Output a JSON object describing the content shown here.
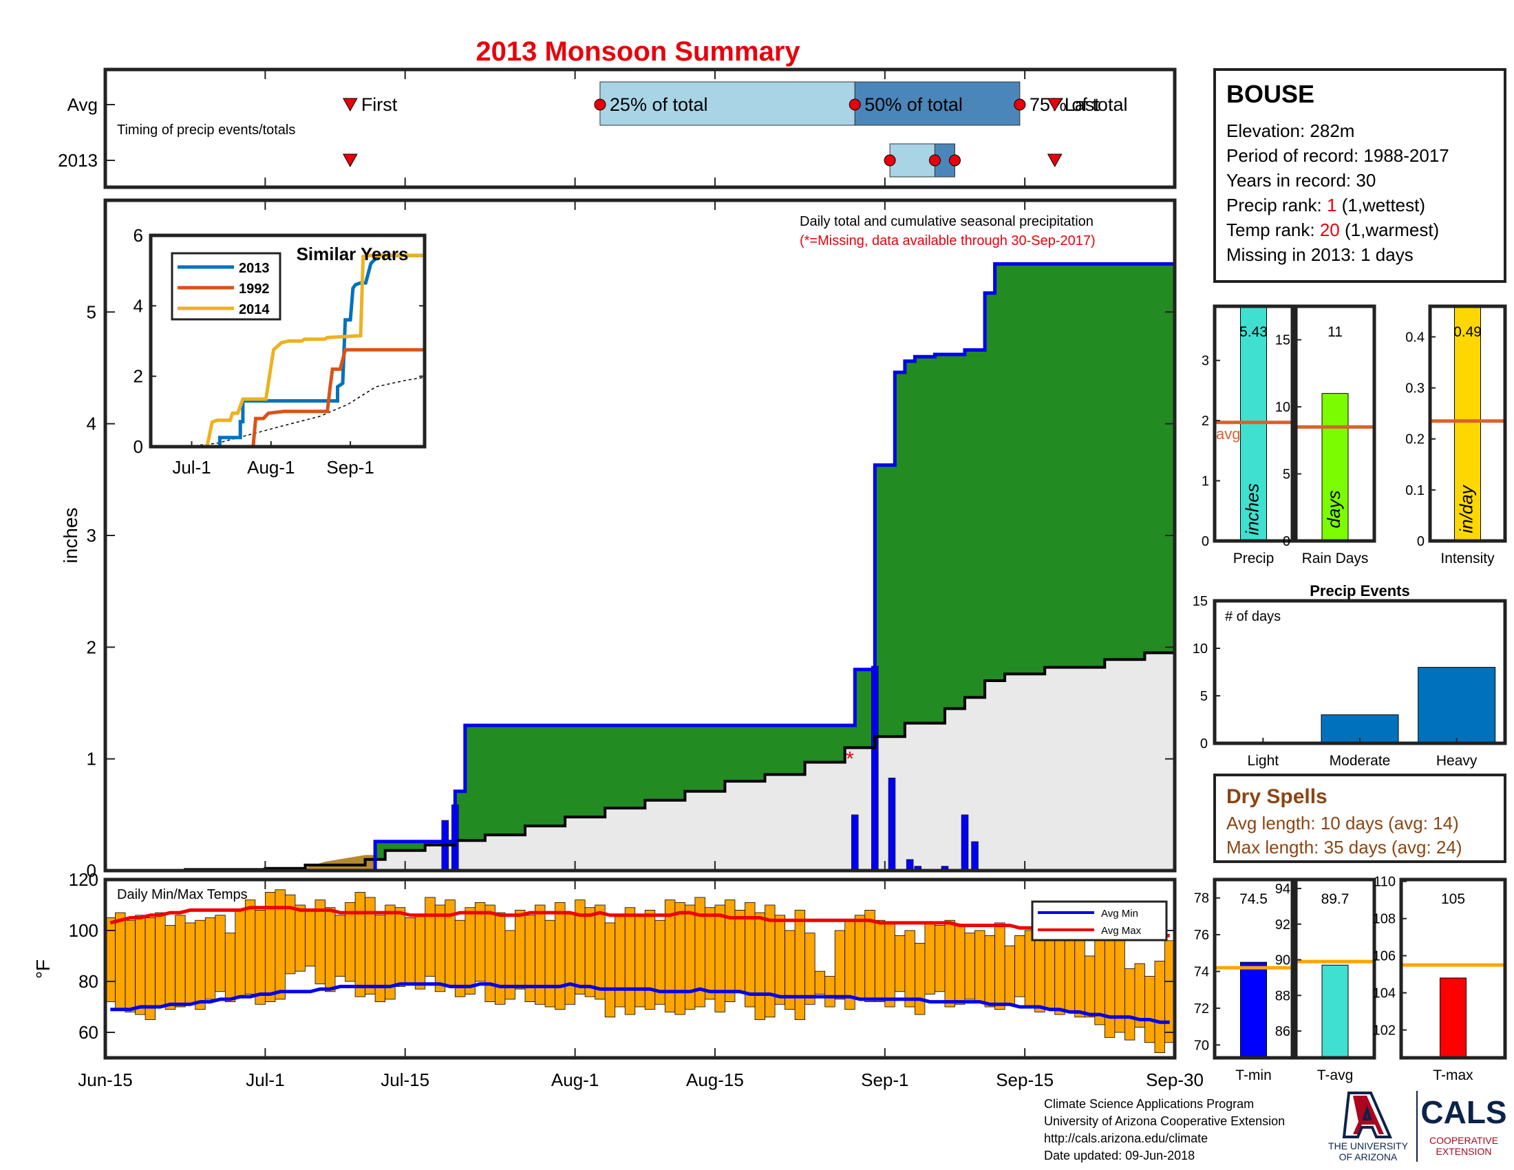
{
  "title": "2013 Monsoon Summary",
  "colors": {
    "title": "#e8000b",
    "red": "#e8000b",
    "green": "#228b22",
    "blue": "#0000ee",
    "cum_avg_fill": "#e9e9e9",
    "light_blue": "#a8d4e6",
    "mid_blue": "#4a86b9",
    "orange_bar": "#ffa500",
    "avg_line_orange": "#d9622b",
    "brown": "#8b4513",
    "series_2013": "#0072bd",
    "series_1992": "#d95319",
    "series_2014": "#edb120",
    "precip_bar": "#40e0d0",
    "raindays_bar": "#7cfc00",
    "intensity_bar": "#ffd700",
    "tmin_bar": "#0000ff",
    "tavg_bar": "#40e0d0",
    "tmax_bar": "#ff0000",
    "temp_avg_line": "#ffa500",
    "events_bar": "#0072bd",
    "dry_spells_text": "#8b4513"
  },
  "timing": {
    "row_labels": [
      "Avg",
      "2013"
    ],
    "note": "Timing of precip events/totals",
    "labels": {
      "first": "First",
      "p25": "25% of total",
      "p50": "50% of total",
      "p75": "75% of total",
      "last": "Last"
    },
    "avg": {
      "first_day": 24.5,
      "p25_day": 49.5,
      "p50_day": 75.0,
      "p75_day": 91.5,
      "last_day": 95.0
    },
    "y2013": {
      "first_day": 24.5,
      "p25_day": 78.5,
      "p50_day": 83.0,
      "p75_day": 85.0,
      "last_day": 95.0
    }
  },
  "main_chart": {
    "ylabel": "inches",
    "note": "Daily total and cumulative seasonal precipitation",
    "missing_note": "(*=Missing, data available through 30-Sep-2017)",
    "ylim": [
      0,
      6
    ],
    "yticks": [
      0,
      1,
      2,
      3,
      4,
      5
    ],
    "xlim": [
      0,
      107
    ],
    "xticks": [
      {
        "day": 0,
        "label": "Jun-15"
      },
      {
        "day": 16,
        "label": "Jul-1"
      },
      {
        "day": 30,
        "label": "Jul-15"
      },
      {
        "day": 47,
        "label": "Aug-1"
      },
      {
        "day": 61,
        "label": "Aug-15"
      },
      {
        "day": 78,
        "label": "Sep-1"
      },
      {
        "day": 92,
        "label": "Sep-15"
      },
      {
        "day": 107,
        "label": "Sep-30"
      }
    ],
    "cumulative_2013": [
      [
        0,
        0
      ],
      [
        27,
        0
      ],
      [
        27,
        0.26
      ],
      [
        35,
        0.26
      ],
      [
        35,
        0.71
      ],
      [
        36,
        0.71
      ],
      [
        36,
        1.3
      ],
      [
        75,
        1.3
      ],
      [
        75,
        1.8
      ],
      [
        77,
        1.8
      ],
      [
        77,
        3.63
      ],
      [
        79,
        3.63
      ],
      [
        79,
        4.46
      ],
      [
        80,
        4.46
      ],
      [
        80,
        4.56
      ],
      [
        81,
        4.56
      ],
      [
        81,
        4.6
      ],
      [
        83,
        4.6
      ],
      [
        83,
        4.62
      ],
      [
        86,
        4.62
      ],
      [
        86,
        4.66
      ],
      [
        88,
        4.66
      ],
      [
        88,
        5.17
      ],
      [
        89,
        5.17
      ],
      [
        89,
        5.43
      ],
      [
        107,
        5.43
      ]
    ],
    "cumulative_avg": [
      [
        0,
        0
      ],
      [
        8,
        0.01
      ],
      [
        16,
        0.02
      ],
      [
        20,
        0.05
      ],
      [
        26,
        0.1
      ],
      [
        28,
        0.18
      ],
      [
        32,
        0.23
      ],
      [
        35,
        0.27
      ],
      [
        38,
        0.32
      ],
      [
        42,
        0.4
      ],
      [
        46,
        0.48
      ],
      [
        50,
        0.56
      ],
      [
        54,
        0.63
      ],
      [
        58,
        0.71
      ],
      [
        62,
        0.8
      ],
      [
        66,
        0.86
      ],
      [
        70,
        0.97
      ],
      [
        74,
        1.1
      ],
      [
        77,
        1.2
      ],
      [
        80,
        1.32
      ],
      [
        84,
        1.45
      ],
      [
        86,
        1.55
      ],
      [
        88,
        1.7
      ],
      [
        90,
        1.76
      ],
      [
        94,
        1.82
      ],
      [
        100,
        1.89
      ],
      [
        104,
        1.95
      ],
      [
        107,
        1.97
      ]
    ],
    "pre_season_fill": [
      [
        19,
        0
      ],
      [
        22,
        0.08
      ],
      [
        26,
        0.14
      ],
      [
        27,
        0.14
      ],
      [
        27,
        0
      ]
    ],
    "daily_2013": [
      {
        "day": 34,
        "value": 0.45
      },
      {
        "day": 35,
        "value": 0.59
      },
      {
        "day": 75,
        "value": 0.5
      },
      {
        "day": 77,
        "value": 1.83
      },
      {
        "day": 78.7,
        "value": 0.83
      },
      {
        "day": 80.5,
        "value": 0.1
      },
      {
        "day": 81.3,
        "value": 0.04
      },
      {
        "day": 84,
        "value": 0.04
      },
      {
        "day": 86,
        "value": 0.5
      },
      {
        "day": 87,
        "value": 0.26
      }
    ],
    "missing_marker": {
      "day": 74.5,
      "value": 1.0,
      "symbol": "*"
    }
  },
  "inset": {
    "title": "Similar Years",
    "xlim": [
      0,
      107
    ],
    "ylim": [
      0,
      6
    ],
    "yticks": [
      0,
      2,
      4,
      6
    ],
    "xticks": [
      {
        "day": 16,
        "label": "Jul-1"
      },
      {
        "day": 47,
        "label": "Aug-1"
      },
      {
        "day": 78,
        "label": "Sep-1"
      }
    ],
    "series": [
      {
        "name": "2013",
        "color": "#0072bd",
        "points": [
          [
            0,
            0
          ],
          [
            27,
            0
          ],
          [
            27,
            0.26
          ],
          [
            35,
            0.26
          ],
          [
            35,
            0.71
          ],
          [
            36,
            0.71
          ],
          [
            36,
            1.3
          ],
          [
            73,
            1.3
          ],
          [
            73,
            1.7
          ],
          [
            75,
            1.8
          ],
          [
            76,
            3.6
          ],
          [
            78,
            3.6
          ],
          [
            79,
            4.5
          ],
          [
            80,
            4.6
          ],
          [
            82,
            4.65
          ],
          [
            84,
            4.65
          ],
          [
            86,
            5.2
          ],
          [
            89,
            5.43
          ],
          [
            107,
            5.43
          ]
        ]
      },
      {
        "name": "1992",
        "color": "#d95319",
        "points": [
          [
            0,
            0
          ],
          [
            40,
            0
          ],
          [
            41,
            0.8
          ],
          [
            44,
            0.8
          ],
          [
            46,
            0.95
          ],
          [
            52,
            1.0
          ],
          [
            60,
            1.0
          ],
          [
            69,
            1.0
          ],
          [
            70,
            1.65
          ],
          [
            71,
            2.2
          ],
          [
            74,
            2.2
          ],
          [
            76,
            2.75
          ],
          [
            107,
            2.75
          ]
        ]
      },
      {
        "name": "2014",
        "color": "#edb120",
        "points": [
          [
            0,
            0
          ],
          [
            22,
            0
          ],
          [
            24,
            0.7
          ],
          [
            26,
            0.75
          ],
          [
            31,
            0.75
          ],
          [
            32,
            0.95
          ],
          [
            34,
            0.95
          ],
          [
            36,
            1.35
          ],
          [
            45,
            1.35
          ],
          [
            48,
            2.75
          ],
          [
            51,
            2.95
          ],
          [
            54,
            3.0
          ],
          [
            59,
            3.0
          ],
          [
            60,
            3.05
          ],
          [
            68,
            3.05
          ],
          [
            69,
            3.1
          ],
          [
            82,
            3.15
          ],
          [
            83,
            5.4
          ],
          [
            85,
            5.43
          ],
          [
            107,
            5.43
          ]
        ]
      }
    ],
    "average": [
      [
        0,
        0
      ],
      [
        16,
        0.02
      ],
      [
        26,
        0.1
      ],
      [
        35,
        0.27
      ],
      [
        50,
        0.56
      ],
      [
        66,
        0.86
      ],
      [
        77,
        1.2
      ],
      [
        88,
        1.7
      ],
      [
        100,
        1.89
      ],
      [
        107,
        1.97
      ]
    ]
  },
  "temp_chart": {
    "note": "Daily Min/Max Temps",
    "ylabel": "°F",
    "ylim": [
      50,
      120
    ],
    "yticks": [
      60,
      80,
      100,
      120
    ],
    "legend": [
      "Avg Min",
      "Avg Max"
    ],
    "highs": [
      105,
      107,
      104,
      106,
      105,
      107,
      102,
      106,
      103,
      104,
      105,
      106,
      99,
      108,
      112,
      108,
      115,
      116,
      114,
      110,
      108,
      112,
      109,
      106,
      111,
      115,
      113,
      106,
      110,
      109,
      105,
      106,
      113,
      110,
      112,
      104,
      109,
      111,
      110,
      107,
      100,
      108,
      106,
      110,
      104,
      111,
      107,
      112,
      109,
      110,
      103,
      106,
      109,
      106,
      108,
      104,
      112,
      111,
      110,
      113,
      109,
      110,
      112,
      108,
      111,
      107,
      110,
      106,
      100,
      108,
      99,
      84,
      82,
      100,
      104,
      106,
      108,
      104,
      103,
      98,
      100,
      95,
      103,
      102,
      104,
      102,
      99,
      100,
      98,
      103,
      94,
      98,
      100,
      102,
      96,
      101,
      98,
      100,
      90,
      97,
      99,
      96,
      85,
      87,
      82,
      88,
      96
    ],
    "lows": [
      72,
      69,
      68,
      67,
      65,
      70,
      69,
      70,
      71,
      69,
      73,
      76,
      72,
      74,
      75,
      71,
      72,
      73,
      83,
      84,
      86,
      79,
      76,
      82,
      80,
      74,
      75,
      72,
      73,
      78,
      79,
      77,
      82,
      76,
      78,
      74,
      75,
      80,
      72,
      71,
      73,
      77,
      72,
      71,
      70,
      69,
      71,
      75,
      74,
      73,
      66,
      70,
      67,
      70,
      69,
      71,
      68,
      67,
      69,
      70,
      73,
      68,
      72,
      76,
      70,
      65,
      66,
      71,
      69,
      65,
      71,
      75,
      70,
      73,
      69,
      73,
      72,
      72,
      70,
      76,
      70,
      67,
      75,
      76,
      70,
      71,
      73,
      72,
      70,
      69,
      71,
      74,
      70,
      68,
      69,
      67,
      68,
      66,
      66,
      63,
      58,
      60,
      57,
      62,
      56,
      52,
      56
    ],
    "avg_max": [
      103,
      104,
      105,
      105,
      106,
      106,
      107,
      107,
      108,
      108,
      108,
      108,
      108,
      108,
      109,
      109,
      109,
      109,
      109,
      108,
      108,
      108,
      108,
      107,
      107,
      107,
      107,
      107,
      107,
      107,
      106,
      106,
      106,
      106,
      106,
      107,
      107,
      107,
      107,
      106,
      106,
      106,
      107,
      107,
      107,
      107,
      107,
      106,
      106,
      107,
      106,
      106,
      106,
      106,
      106,
      106,
      106,
      107,
      107,
      106,
      106,
      106,
      105,
      105,
      105,
      105,
      104,
      104,
      104,
      104,
      104,
      104,
      104,
      104,
      104,
      104,
      104,
      103,
      103,
      103,
      103,
      103,
      103,
      103,
      103,
      102,
      102,
      102,
      102,
      102,
      102,
      101,
      101,
      101,
      101,
      101,
      100,
      100,
      100,
      100,
      100,
      99,
      99,
      99,
      99,
      98,
      98
    ],
    "avg_min": [
      69,
      69,
      69,
      70,
      70,
      70,
      71,
      71,
      71,
      72,
      72,
      73,
      73,
      74,
      74,
      75,
      75,
      76,
      76,
      76,
      76,
      77,
      77,
      78,
      78,
      78,
      78,
      78,
      78,
      79,
      79,
      79,
      79,
      79,
      78,
      78,
      78,
      79,
      79,
      78,
      78,
      78,
      78,
      78,
      78,
      78,
      79,
      78,
      78,
      77,
      77,
      77,
      77,
      77,
      77,
      76,
      76,
      76,
      76,
      77,
      76,
      76,
      76,
      76,
      75,
      75,
      75,
      74,
      74,
      74,
      74,
      74,
      74,
      74,
      74,
      73,
      73,
      73,
      73,
      73,
      73,
      73,
      72,
      72,
      72,
      72,
      72,
      72,
      71,
      71,
      71,
      70,
      70,
      70,
      69,
      69,
      68,
      68,
      67,
      67,
      66,
      66,
      66,
      65,
      65,
      64,
      64
    ]
  },
  "station": {
    "name": "BOUSE",
    "elevation": "Elevation: 282m",
    "period": "Period of record: 1988-2017",
    "years": "Years in record: 30",
    "precip_rank_label": "Precip rank: ",
    "precip_rank_value": "1",
    "precip_rank_suffix": " (1,wettest)",
    "temp_rank_label": "Temp rank: ",
    "temp_rank_value": "20",
    "temp_rank_suffix": " (1,warmest)",
    "missing": "Missing in 2013: 1 days"
  },
  "small_bars": [
    {
      "label": "Precip",
      "unit": "inches",
      "value": 5.43,
      "value_label": "5.43",
      "avg": 1.97,
      "avg_label": "avg",
      "ylim": [
        0,
        3.9
      ],
      "yticks": [
        0,
        1,
        2,
        3
      ]
    },
    {
      "label": "Rain Days",
      "unit": "days",
      "value": 11,
      "value_label": "11",
      "avg": 8.5,
      "ylim": [
        0,
        17.5
      ],
      "yticks": [
        0,
        5,
        10,
        15
      ]
    },
    {
      "label": "Intensity",
      "unit": "in/day",
      "value": 0.49,
      "value_label": "0.49",
      "avg": 0.235,
      "ylim": [
        0,
        0.46
      ],
      "yticks": [
        0,
        0.1,
        0.2,
        0.3,
        0.4
      ],
      "ytick_labels": [
        "0",
        "0.1",
        "0.2",
        "0.3",
        "0.4"
      ]
    }
  ],
  "precip_events": {
    "title": "Precip Events",
    "ylabel_note": "# of days",
    "ylim": [
      0,
      15
    ],
    "yticks": [
      0,
      5,
      10,
      15
    ],
    "categories": [
      "Light",
      "Moderate",
      "Heavy"
    ],
    "values": [
      0,
      3,
      8
    ]
  },
  "dry_spells": {
    "title": "Dry Spells",
    "avg_length": "Avg length: 10 days (avg: 14)",
    "max_length": "Max length: 35 days (avg: 24)"
  },
  "temp_bars": [
    {
      "label": "T-min",
      "value": 74.5,
      "value_label": "74.5",
      "avg": 74.2,
      "ylim": [
        69.3,
        79
      ],
      "yticks": [
        70,
        72,
        74,
        76,
        78
      ]
    },
    {
      "label": "T-avg",
      "value": 89.7,
      "value_label": "89.7",
      "avg": 89.9,
      "ylim": [
        84.5,
        94.5
      ],
      "yticks": [
        86,
        88,
        90,
        92,
        94
      ]
    },
    {
      "label": "T-max",
      "value": 104.8,
      "value_label": "105",
      "avg": 105.5,
      "ylim": [
        100.5,
        110.1
      ],
      "yticks": [
        102,
        104,
        106,
        108,
        110
      ]
    }
  ],
  "footer": {
    "line1": "Climate Science Applications Program",
    "line2": "University of Arizona Cooperative Extension",
    "line3": "http://cals.arizona.edu/climate",
    "line4": " Date updated: 09-Jun-2018"
  },
  "logos": {
    "ua_text_1": "THE UNIVERSITY",
    "ua_text_2": "OF ARIZONA",
    "cals_text": "CALS",
    "cals_sub_1": "COOPERATIVE",
    "cals_sub_2": "EXTENSION"
  }
}
